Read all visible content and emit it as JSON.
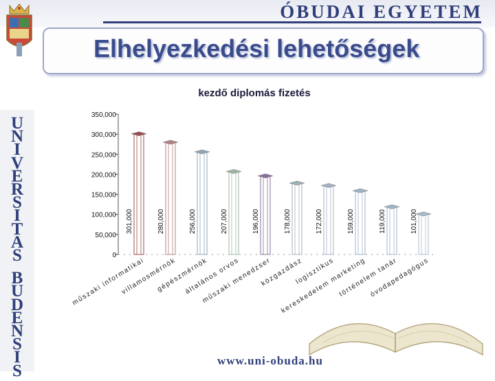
{
  "header": {
    "brand": "ÓBUDAI EGYETEM",
    "title": "Elhelyezkedési lehetőségek"
  },
  "sidebar": {
    "letters": [
      "U",
      "N",
      "I",
      "V",
      "E",
      "R",
      "S",
      "I",
      "T",
      "A",
      "S",
      "B",
      "U",
      "D",
      "E",
      "N",
      "S",
      "I",
      "S"
    ]
  },
  "footer": {
    "url": "www.uni-obuda.hu"
  },
  "colors": {
    "brand": "#2f3f7a",
    "title": "#3a4b8c",
    "accent": "#c0392b"
  },
  "chart_data": {
    "type": "bar",
    "title": "kezdő diplomás fizetés",
    "xlabel": "",
    "ylabel": "",
    "ylim": [
      0,
      350000
    ],
    "yticks": [
      0,
      50000,
      100000,
      150000,
      200000,
      250000,
      300000,
      350000
    ],
    "ytick_labels": [
      "0",
      "50,000",
      "100,000",
      "150,000",
      "200,000",
      "250,000",
      "300,000",
      "350,000"
    ],
    "grid": false,
    "legend": "none",
    "categories": [
      "műszaki informatikai",
      "villamosmérnök",
      "gépészmérnök",
      "általános orvos",
      "műszaki menedzser",
      "közgazdász",
      "logisztikus",
      "kereskedelem marketing",
      "történelem tanár",
      "óvodapedagógus"
    ],
    "values": [
      301000,
      280000,
      256000,
      207000,
      196000,
      178000,
      172000,
      159000,
      119000,
      101000
    ],
    "value_labels": [
      "301,000",
      "280,000",
      "256,000",
      "207,000",
      "196,000",
      "178,000",
      "172,000",
      "159,000",
      "119,000",
      "101,000"
    ],
    "colors": [
      "#9d4c4c",
      "#b08080",
      "#8fa6b8",
      "#9cb6a4",
      "#8a6f9a",
      "#9fb0bd",
      "#a3b2c4",
      "#9db3c6",
      "#9fb4c9",
      "#a8bccd"
    ]
  }
}
